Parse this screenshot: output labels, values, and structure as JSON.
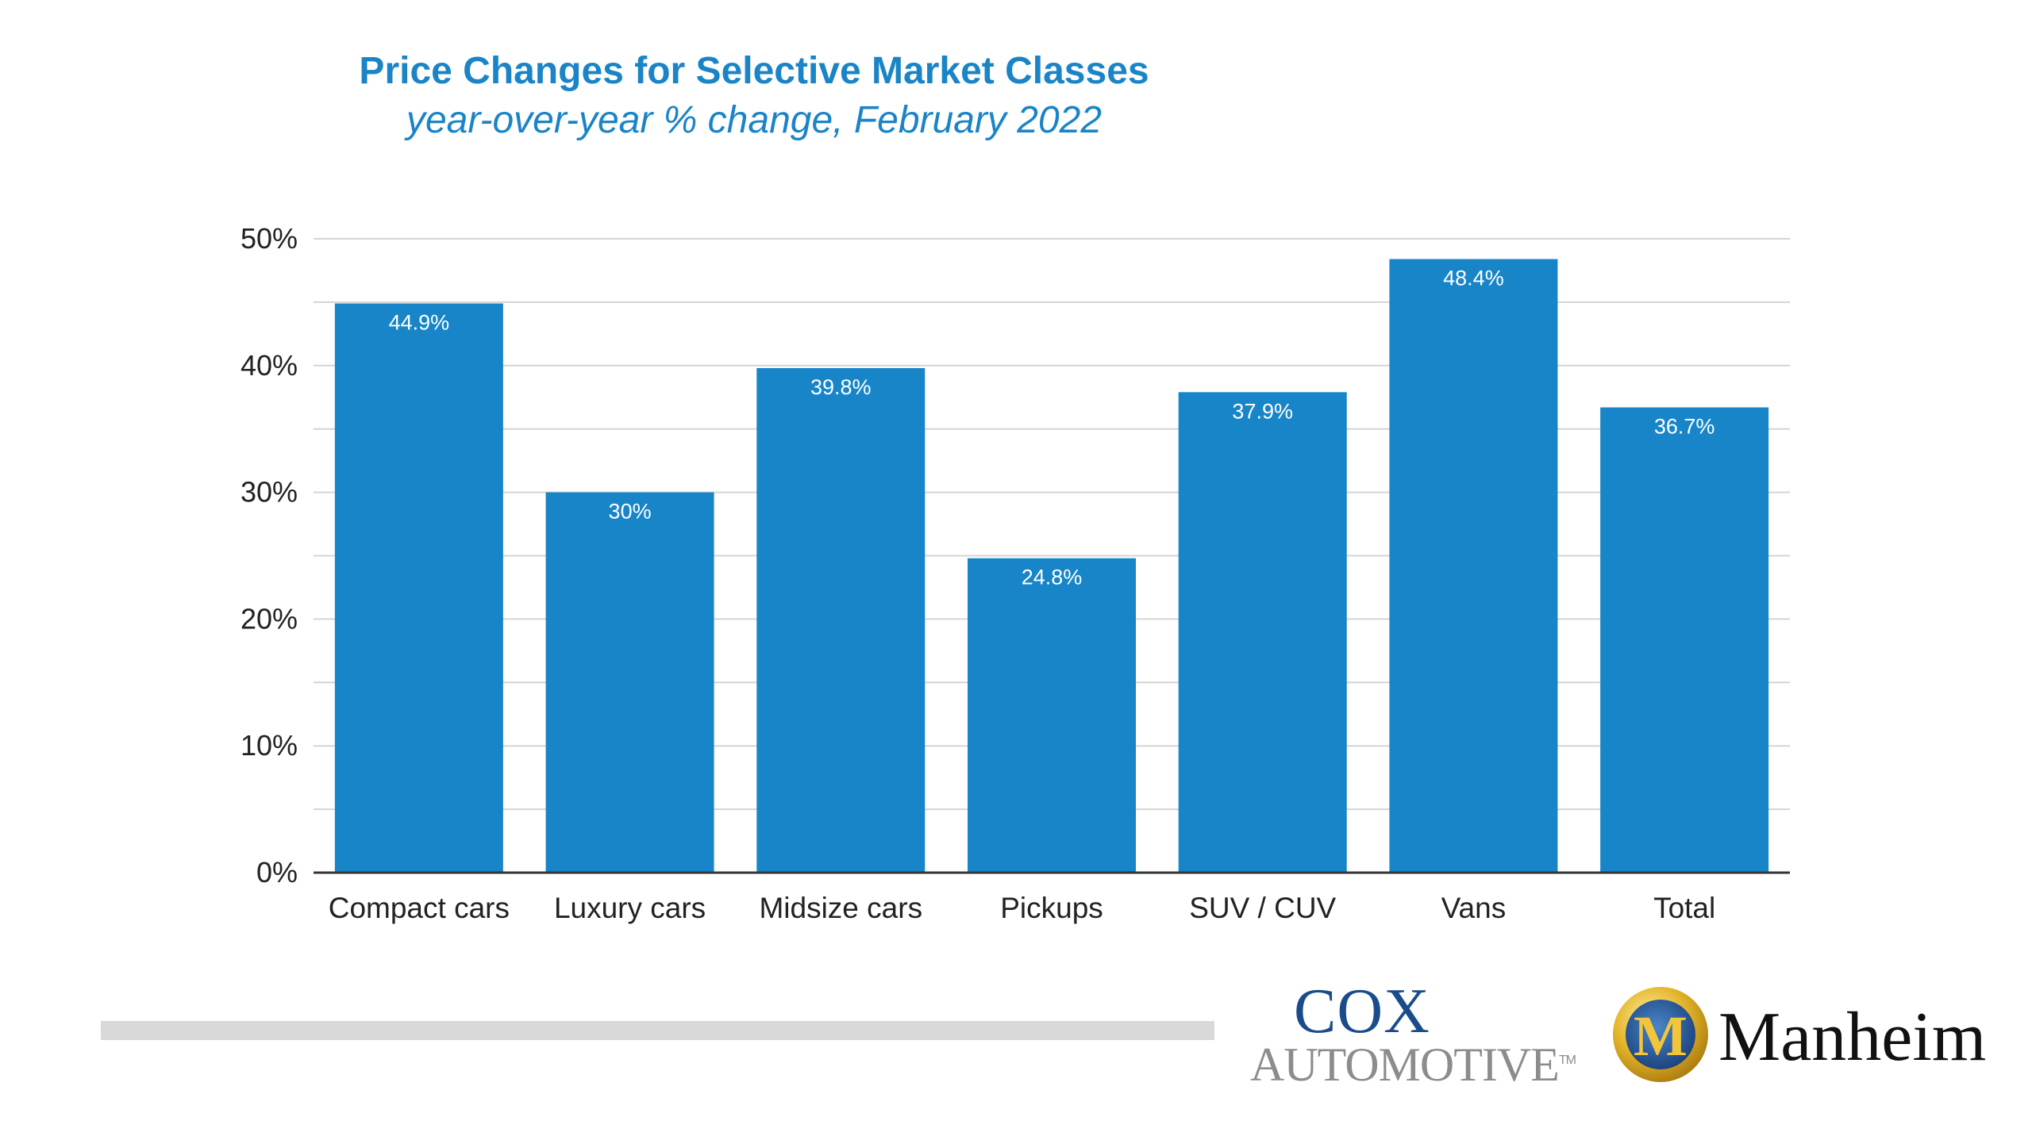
{
  "header": {
    "title": "Price Changes for Selective Market Classes",
    "subtitle": "year-over-year % change, February 2022"
  },
  "chart_data": {
    "type": "bar",
    "title": "Price Changes for Selective Market Classes",
    "subtitle": "year-over-year % change, February 2022",
    "categories": [
      "Compact cars",
      "Luxury cars",
      "Midsize cars",
      "Pickups",
      "SUV / CUV",
      "Vans",
      "Total"
    ],
    "values": [
      44.9,
      30,
      39.8,
      24.8,
      37.9,
      48.4,
      36.7
    ],
    "data_labels": [
      "44.9%",
      "30%",
      "39.8%",
      "24.8%",
      "37.9%",
      "48.4%",
      "36.7%"
    ],
    "yticks": [
      0,
      10,
      20,
      30,
      40,
      50
    ],
    "ytick_labels": [
      "0%",
      "10%",
      "20%",
      "30%",
      "40%",
      "50%"
    ],
    "ylim": [
      0,
      50
    ],
    "xlabel": "",
    "ylabel": "",
    "grid": true,
    "legend": "none",
    "bar_color": "#1785c8"
  },
  "footer": {
    "logos": [
      {
        "name": "cox-automotive-logo",
        "text_top": "COX",
        "text_bottom": "AUTOMOTIVE",
        "trademark": "TM",
        "colors": [
          "#1a4c8c",
          "#8c8c8c"
        ]
      },
      {
        "name": "manheim-logo",
        "text": "Manheim",
        "emblem_letter": "M",
        "colors": [
          "#d4a017",
          "#1a4c8c",
          "#111111"
        ]
      }
    ]
  }
}
